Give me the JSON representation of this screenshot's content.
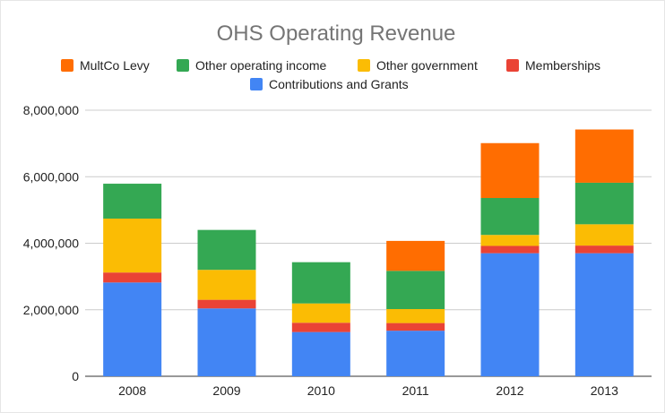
{
  "chart_data": {
    "type": "bar",
    "stacked": true,
    "title": "OHS Operating Revenue",
    "xlabel": "",
    "ylabel": "",
    "categories": [
      "2008",
      "2009",
      "2010",
      "2011",
      "2012",
      "2013"
    ],
    "ylim": [
      0,
      8000000
    ],
    "yticks": [
      0,
      2000000,
      4000000,
      6000000,
      8000000
    ],
    "ytick_labels": [
      "0",
      "2,000,000",
      "4,000,000",
      "6,000,000",
      "8,000,000"
    ],
    "grid": true,
    "legend_position": "top",
    "series": [
      {
        "name": "Contributions and Grants",
        "color": "#4285f4",
        "values": [
          2820000,
          2040000,
          1330000,
          1370000,
          3700000,
          3700000
        ]
      },
      {
        "name": "Memberships",
        "color": "#ea4335",
        "values": [
          300000,
          260000,
          280000,
          230000,
          220000,
          230000
        ]
      },
      {
        "name": "Other government",
        "color": "#fbbc04",
        "values": [
          1620000,
          900000,
          580000,
          420000,
          330000,
          640000
        ]
      },
      {
        "name": "Other operating income",
        "color": "#34a853",
        "values": [
          1050000,
          1200000,
          1240000,
          1150000,
          1110000,
          1250000
        ]
      },
      {
        "name": "MultCo Levy",
        "color": "#ff6d01",
        "values": [
          0,
          0,
          0,
          900000,
          1650000,
          1600000
        ]
      }
    ],
    "legend_order": [
      "MultCo Levy",
      "Other operating income",
      "Other government",
      "Memberships",
      "Contributions and Grants"
    ]
  }
}
